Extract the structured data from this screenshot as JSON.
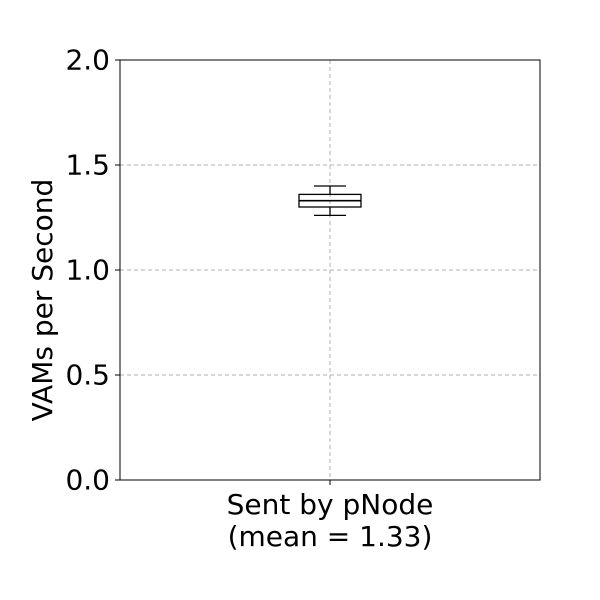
{
  "chart_data": {
    "type": "box",
    "title": "",
    "ylabel": "VAMs per Second",
    "xlabel": "",
    "ylim": [
      0.0,
      2.0
    ],
    "yticks": [
      {
        "value": 0.0,
        "label": "0.0"
      },
      {
        "value": 0.5,
        "label": "0.5"
      },
      {
        "value": 1.0,
        "label": "1.0"
      },
      {
        "value": 1.5,
        "label": "1.5"
      },
      {
        "value": 2.0,
        "label": "2.0"
      }
    ],
    "grid": true,
    "categories": [
      {
        "line1": "Sent by pNode",
        "line2": "(mean = 1.33)"
      }
    ],
    "boxes": [
      {
        "whisker_low": 1.26,
        "q1": 1.3,
        "median": 1.33,
        "q3": 1.36,
        "whisker_high": 1.4
      }
    ],
    "colors": {
      "box": "#000000",
      "grid": "#b0b0b0",
      "frame": "#000000"
    }
  }
}
